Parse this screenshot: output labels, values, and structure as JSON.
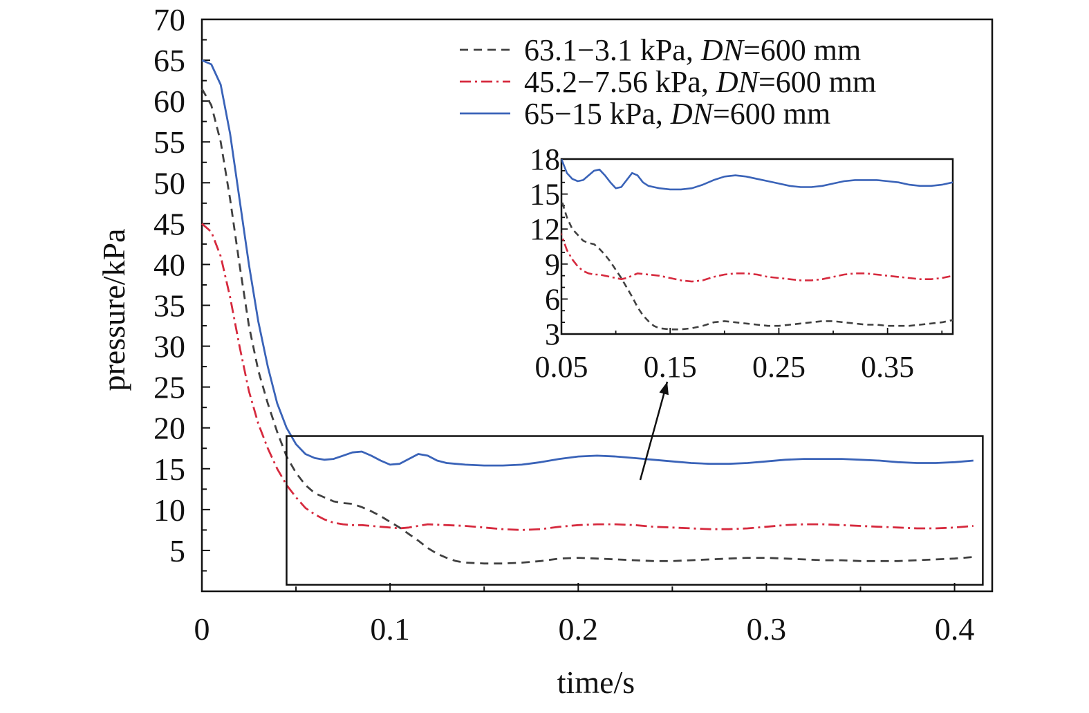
{
  "chart_data": {
    "type": "line",
    "title": "",
    "xlabel": "time/s",
    "ylabel": "pressure/kPa",
    "xlim": [
      0,
      0.42
    ],
    "ylim": [
      0,
      70
    ],
    "x_ticks": [
      "0",
      "0.1",
      "0.2",
      "0.3",
      "0.4"
    ],
    "y_ticks": [
      "5",
      "10",
      "15",
      "20",
      "25",
      "30",
      "35",
      "40",
      "45",
      "50",
      "55",
      "60",
      "65",
      "70"
    ],
    "legend_position": "top-right",
    "grid": false,
    "series": [
      {
        "name": "63.1−3.1 kPa, DN=600 mm",
        "legend_main": "63.1−3.1 kPa, ",
        "legend_italic": "DN",
        "legend_tail": "=600 mm",
        "color": "#404040",
        "style": "dashed",
        "x": [
          0,
          0.005,
          0.01,
          0.015,
          0.02,
          0.025,
          0.03,
          0.035,
          0.04,
          0.045,
          0.05,
          0.055,
          0.06,
          0.065,
          0.07,
          0.075,
          0.08,
          0.085,
          0.09,
          0.095,
          0.1,
          0.105,
          0.11,
          0.115,
          0.12,
          0.125,
          0.13,
          0.135,
          0.14,
          0.15,
          0.16,
          0.17,
          0.18,
          0.19,
          0.2,
          0.21,
          0.22,
          0.23,
          0.24,
          0.25,
          0.26,
          0.27,
          0.28,
          0.29,
          0.3,
          0.31,
          0.32,
          0.33,
          0.34,
          0.35,
          0.36,
          0.37,
          0.38,
          0.39,
          0.4,
          0.41
        ],
        "y": [
          61.5,
          59.5,
          55,
          48,
          40,
          32.5,
          27,
          23,
          19.5,
          16.5,
          14.5,
          13,
          12,
          11.5,
          11,
          10.8,
          10.7,
          10.3,
          9.8,
          9.2,
          8.5,
          7.8,
          7,
          6.2,
          5.3,
          4.6,
          4.1,
          3.7,
          3.5,
          3.4,
          3.4,
          3.5,
          3.7,
          4,
          4.1,
          4,
          3.9,
          3.8,
          3.7,
          3.7,
          3.8,
          3.9,
          4,
          4.1,
          4.1,
          4,
          3.9,
          3.8,
          3.8,
          3.7,
          3.7,
          3.7,
          3.8,
          3.9,
          4,
          4.2
        ]
      },
      {
        "name": "45.2−7.56 kPa, DN=600 mm",
        "legend_main": "45.2−7.56 kPa, ",
        "legend_italic": "DN",
        "legend_tail": "=600 mm",
        "color": "#d62a3e",
        "style": "dashdot",
        "x": [
          0,
          0.005,
          0.01,
          0.015,
          0.02,
          0.025,
          0.03,
          0.035,
          0.04,
          0.045,
          0.05,
          0.055,
          0.06,
          0.065,
          0.07,
          0.075,
          0.08,
          0.085,
          0.09,
          0.095,
          0.1,
          0.105,
          0.11,
          0.12,
          0.13,
          0.14,
          0.15,
          0.16,
          0.17,
          0.18,
          0.19,
          0.2,
          0.21,
          0.22,
          0.23,
          0.24,
          0.25,
          0.26,
          0.27,
          0.28,
          0.29,
          0.3,
          0.31,
          0.32,
          0.33,
          0.34,
          0.35,
          0.36,
          0.37,
          0.38,
          0.39,
          0.4,
          0.41
        ],
        "y": [
          45,
          44,
          41,
          36,
          30,
          24.5,
          20.5,
          17.5,
          15,
          13,
          11.5,
          10.2,
          9.4,
          8.8,
          8.4,
          8.2,
          8.1,
          8.1,
          8,
          7.9,
          7.8,
          7.7,
          7.8,
          8.2,
          8.1,
          8,
          7.8,
          7.6,
          7.5,
          7.6,
          7.9,
          8.1,
          8.2,
          8.2,
          8.1,
          7.9,
          7.8,
          7.7,
          7.6,
          7.6,
          7.7,
          7.9,
          8.1,
          8.2,
          8.2,
          8.1,
          8,
          7.9,
          7.8,
          7.7,
          7.7,
          7.8,
          8
        ]
      },
      {
        "name": "65−15 kPa, DN=600 mm",
        "legend_main": "65−15 kPa, ",
        "legend_italic": "DN",
        "legend_tail": "=600 mm",
        "color": "#3a63b8",
        "style": "solid",
        "x": [
          0,
          0.005,
          0.01,
          0.015,
          0.02,
          0.025,
          0.03,
          0.035,
          0.04,
          0.045,
          0.05,
          0.055,
          0.06,
          0.065,
          0.07,
          0.075,
          0.08,
          0.085,
          0.09,
          0.095,
          0.1,
          0.105,
          0.11,
          0.115,
          0.12,
          0.125,
          0.13,
          0.135,
          0.14,
          0.15,
          0.16,
          0.17,
          0.18,
          0.19,
          0.2,
          0.21,
          0.22,
          0.23,
          0.24,
          0.25,
          0.26,
          0.27,
          0.28,
          0.29,
          0.3,
          0.31,
          0.32,
          0.33,
          0.34,
          0.35,
          0.36,
          0.37,
          0.38,
          0.39,
          0.4,
          0.41
        ],
        "y": [
          65,
          64.5,
          62,
          56,
          48,
          40,
          33,
          27.5,
          23,
          20,
          18,
          16.8,
          16.3,
          16.1,
          16.2,
          16.6,
          17,
          17.1,
          16.6,
          16,
          15.5,
          15.6,
          16.2,
          16.8,
          16.6,
          16,
          15.7,
          15.6,
          15.5,
          15.4,
          15.4,
          15.5,
          15.8,
          16.2,
          16.5,
          16.6,
          16.5,
          16.3,
          16.1,
          15.9,
          15.7,
          15.6,
          15.6,
          15.7,
          15.9,
          16.1,
          16.2,
          16.2,
          16.2,
          16.1,
          16,
          15.8,
          15.7,
          15.7,
          15.8,
          16
        ]
      }
    ],
    "inset": {
      "xlim": [
        0.05,
        0.41
      ],
      "ylim": [
        3,
        18
      ],
      "x_ticks": [
        "0.05",
        "0.15",
        "0.25",
        "0.35"
      ],
      "y_ticks": [
        "3",
        "6",
        "9",
        "12",
        "15",
        "18"
      ],
      "zoom_box": {
        "x": [
          0.045,
          0.415
        ],
        "y": [
          0.8,
          19
        ]
      }
    }
  }
}
